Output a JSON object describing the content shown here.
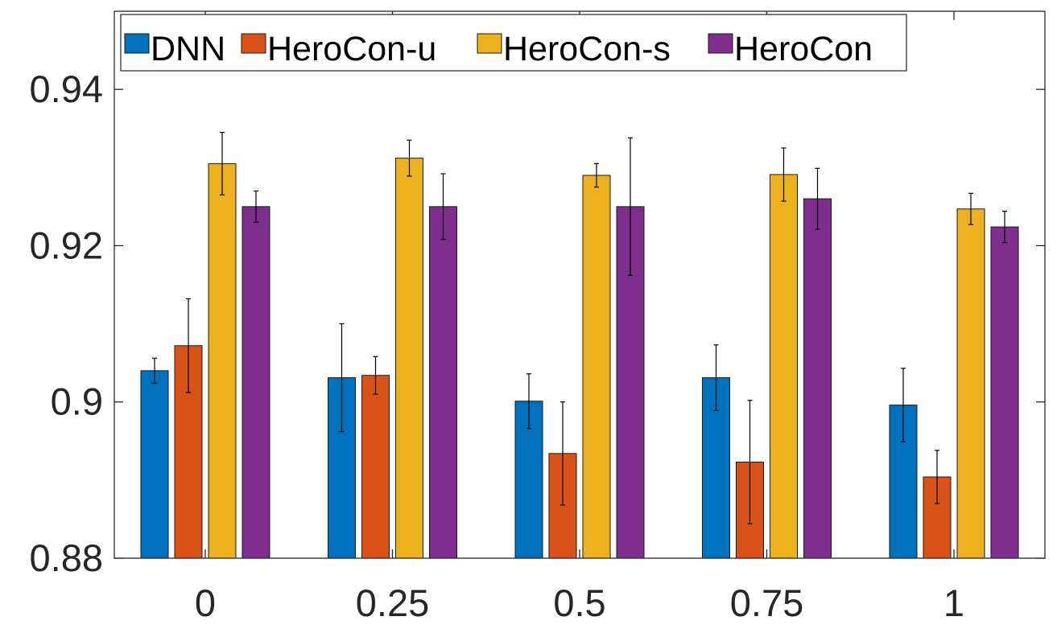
{
  "chart_data": {
    "type": "bar",
    "categories": [
      "0",
      "0.25",
      "0.5",
      "0.75",
      "1"
    ],
    "title": "",
    "xlabel": "",
    "ylabel": "",
    "ylim": [
      0.88,
      0.95
    ],
    "yticks": [
      0.88,
      0.9,
      0.92,
      0.94
    ],
    "ytick_labels": [
      "0.88",
      "0.9",
      "0.92",
      "0.94"
    ],
    "grid": false,
    "legend": {
      "position": "top-left",
      "orientation": "horizontal"
    },
    "series": [
      {
        "name": "DNN",
        "color": "#0072BD",
        "values": [
          0.904,
          0.9031,
          0.9001,
          0.9031,
          0.8996
        ],
        "errors": [
          0.0016,
          0.0069,
          0.0035,
          0.0042,
          0.0047
        ]
      },
      {
        "name": "HeroCon-u",
        "color": "#D95319",
        "values": [
          0.9072,
          0.9034,
          0.8934,
          0.8923,
          0.8904
        ],
        "errors": [
          0.006,
          0.0024,
          0.0066,
          0.0079,
          0.0034
        ]
      },
      {
        "name": "HeroCon-s",
        "color": "#EDB120",
        "values": [
          0.9305,
          0.9312,
          0.929,
          0.9291,
          0.9247
        ],
        "errors": [
          0.004,
          0.0023,
          0.0015,
          0.0034,
          0.002
        ]
      },
      {
        "name": "HeroCon",
        "color": "#7E2F8E",
        "values": [
          0.925,
          0.925,
          0.925,
          0.926,
          0.9224
        ],
        "errors": [
          0.002,
          0.0042,
          0.0088,
          0.0039,
          0.002
        ]
      }
    ]
  }
}
